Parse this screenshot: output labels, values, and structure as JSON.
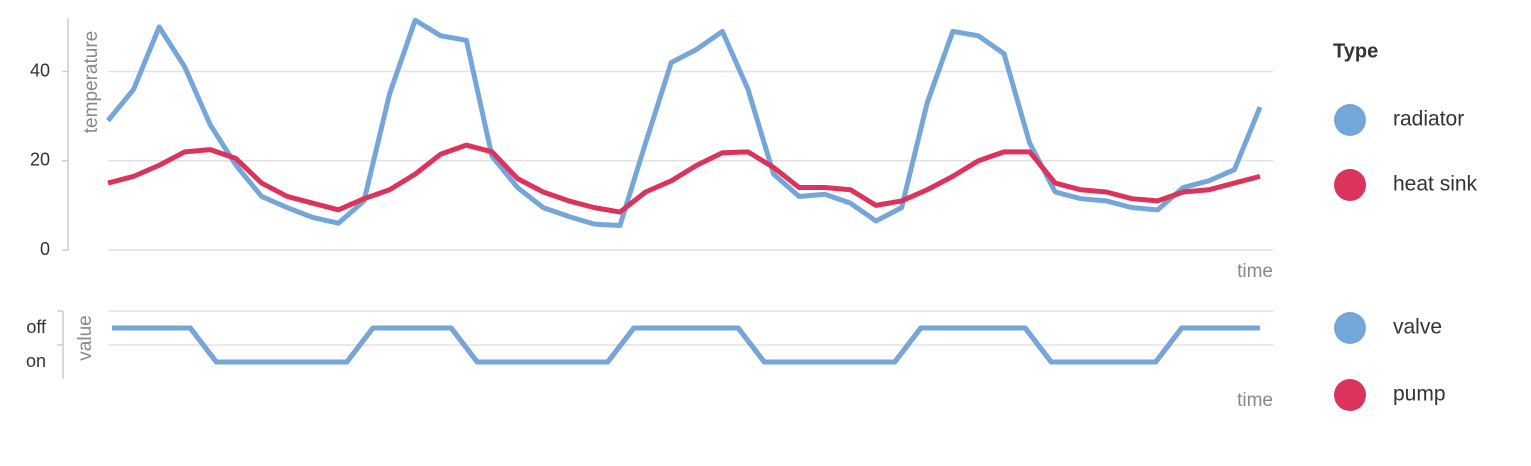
{
  "chart_data": [
    {
      "type": "line",
      "y_label": "temperature",
      "x_label": "time",
      "ylim": [
        0,
        52
      ],
      "yticks": [
        0,
        20,
        40
      ],
      "grid": true,
      "legend_title": "Type",
      "series": [
        {
          "name": "radiator",
          "color": "#74a6da",
          "values": [
            29,
            36,
            50,
            41,
            28,
            19,
            12,
            9.5,
            7.3,
            6,
            11,
            35,
            51.5,
            48,
            47,
            21,
            14,
            9.5,
            7.5,
            5.8,
            5.5,
            24,
            42,
            45,
            49,
            36,
            17,
            12,
            12.5,
            10.5,
            6.5,
            9.5,
            33,
            49,
            48,
            44,
            24,
            13,
            11.5,
            11,
            9.5,
            9,
            14,
            15.5,
            18,
            32
          ]
        },
        {
          "name": "heat sink",
          "color": "#dc335d",
          "values": [
            15,
            16.5,
            19,
            22,
            22.5,
            20.5,
            15,
            12,
            10.5,
            9,
            11.5,
            13.5,
            17,
            21.5,
            23.5,
            22,
            16,
            13,
            11,
            9.5,
            8.5,
            13,
            15.5,
            19,
            21.8,
            22,
            18.5,
            14,
            14,
            13.5,
            10,
            11,
            13.5,
            16.5,
            20,
            22,
            22,
            15,
            13.5,
            13,
            11.5,
            11,
            13,
            13.5,
            15,
            16.5
          ]
        }
      ]
    },
    {
      "type": "step",
      "y_label": "value",
      "x_label": "time",
      "ycategories": [
        "off",
        "on"
      ],
      "grid": true,
      "series": [
        {
          "name": "valve",
          "color": "#74a6da",
          "values": [
            "off",
            "off",
            "off",
            "off",
            "on",
            "on",
            "on",
            "on",
            "on",
            "on",
            "off",
            "off",
            "off",
            "off",
            "on",
            "on",
            "on",
            "on",
            "on",
            "on",
            "off",
            "off",
            "off",
            "off",
            "off",
            "on",
            "on",
            "on",
            "on",
            "on",
            "on",
            "off",
            "off",
            "off",
            "off",
            "off",
            "on",
            "on",
            "on",
            "on",
            "on",
            "off",
            "off",
            "off",
            "off"
          ]
        },
        {
          "name": "pump",
          "color": "#dc335d",
          "values": [
            "off",
            "off",
            "off",
            "off",
            "on",
            "on",
            "on",
            "on",
            "on",
            "on",
            "off",
            "off",
            "off",
            "off",
            "on",
            "on",
            "on",
            "on",
            "on",
            "on",
            "off",
            "off",
            "off",
            "off",
            "off",
            "on",
            "on",
            "on",
            "on",
            "on",
            "on",
            "off",
            "off",
            "off",
            "off",
            "off",
            "on",
            "on",
            "on",
            "on",
            "on",
            "off",
            "off",
            "off",
            "off"
          ]
        }
      ]
    }
  ]
}
